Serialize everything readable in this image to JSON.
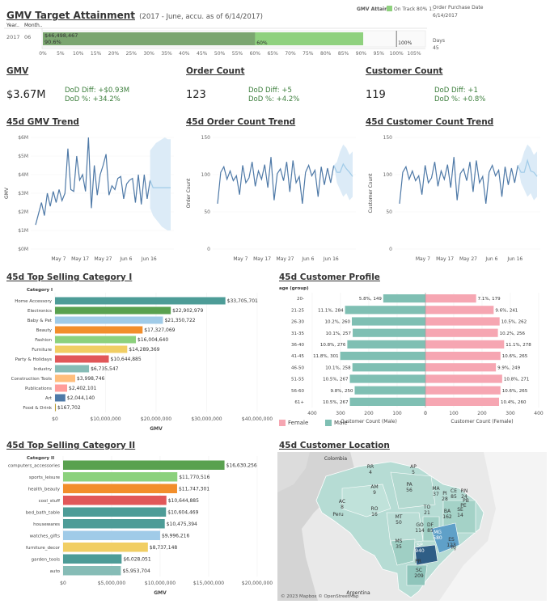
{
  "title": {
    "main": "GMV Target Attainment",
    "sub": "(2017 - June, accu. as of 6/14/2017)"
  },
  "legend_top": {
    "title": "GMV Attain..",
    "item": "On Track 80% 1..",
    "color": "#8fd17e"
  },
  "order_date": {
    "label": "Order Purchase Date",
    "value": "6/14/2017"
  },
  "days": {
    "label": "Days",
    "value": "45"
  },
  "attain": {
    "col_year": "Year..",
    "col_month": "Month..",
    "year": "2017",
    "month": "06",
    "value_label": "$46,498,467",
    "pct_label": "90.6%",
    "mark60": "60%",
    "mark100": "100%",
    "pct": 90.6,
    "ticks": [
      "0%",
      "5%",
      "10%",
      "15%",
      "20%",
      "25%",
      "30%",
      "35%",
      "40%",
      "45%",
      "50%",
      "55%",
      "60%",
      "65%",
      "70%",
      "75%",
      "80%",
      "85%",
      "90%",
      "95%",
      "100%",
      "105%"
    ]
  },
  "kpis": [
    {
      "title": "GMV",
      "value": "$3.67M",
      "diff": "DoD Diff: +$0.93M",
      "pct": "DoD %: +34.2%"
    },
    {
      "title": "Order Count",
      "value": "123",
      "diff": "DoD Diff: +5",
      "pct": "DoD %: +4.2%"
    },
    {
      "title": "Customer Count",
      "value": "119",
      "diff": "DoD Diff: +1",
      "pct": "DoD %: +0.8%"
    }
  ],
  "trends": {
    "titles": [
      "45d GMV Trend",
      "45d Order Count Trend",
      "45d Customer Count Trend"
    ],
    "ylabels": [
      "GMV",
      "Order Count",
      "Customer Count"
    ],
    "x_ticks": [
      "May 7",
      "May 17",
      "May 27",
      "Jun 6",
      "Jun 16"
    ]
  },
  "sections": {
    "cat1": "45d Top Selling Category I",
    "profile": "45d Customer Profile",
    "cat2": "45d Top Selling Category II",
    "location": "45d Customer Location"
  },
  "cat1_header": "Category I",
  "cat2_header": "Category II",
  "profile_header": "age (group)",
  "profile_xlabels": {
    "male": "Customer Count (Male)",
    "female": "Customer Count (Female)"
  },
  "profile_legend": {
    "female": "Female",
    "male": "Male"
  },
  "map": {
    "credit": "© 2023 Mapbox © OpenStreetMap",
    "labels": {
      "colombia": "Colombia",
      "peru": "Peru",
      "argentina": "Argentina",
      "rr": "RR\n4",
      "ap": "AP\n5",
      "am": "AM\n9",
      "pa": "PA\n56",
      "ma": "MA\n37",
      "ce": "CE\n85",
      "rn": "RN\n24",
      "pi": "PI\n28",
      "pb": "PB",
      "pe": "PE",
      "se": "SE\n14",
      "ac": "AC\n8",
      "ro": "RO\n16",
      "mt": "MT\n50",
      "to": "TO\n21",
      "ba": "BA\n162",
      "go": "GO\n114",
      "df": "DF\n85",
      "mg": "MG\n580",
      "es": "ES\n123",
      "ms": "MS\n35",
      "sp": "SP\n940",
      "rj": "RJ",
      "pr": "PR",
      "sc": "SC\n209"
    }
  },
  "colors": {
    "line": "#4e79a7",
    "forecast": "#a0cbe8",
    "band": "#dcebf7",
    "male": "#7fbfb3",
    "female": "#f6a6b2"
  },
  "chart_data": [
    {
      "type": "bar",
      "title": "GMV Target Attainment",
      "categories": [
        "2017 06"
      ],
      "values": [
        90.6
      ],
      "xlim": [
        0,
        105
      ],
      "xlabel": "",
      "annotations": [
        "$46,498,467",
        "90.6%"
      ]
    },
    {
      "type": "line",
      "title": "45d GMV Trend",
      "ylabel": "GMV",
      "ylim": [
        0,
        6000000
      ],
      "y_ticks": [
        "$0M",
        "$1M",
        "$2M",
        "$3M",
        "$4M",
        "$5M",
        "$6M"
      ],
      "x_ticks": [
        "May 7",
        "May 17",
        "May 27",
        "Jun 6",
        "Jun 16"
      ],
      "series": [
        {
          "values": [
            1300000,
            1900000,
            2500000,
            1800000,
            3000000,
            2300000,
            3100000,
            2500000,
            3200000,
            2600000,
            3000000,
            5400000,
            3200000,
            3100000,
            5000000,
            3700000,
            4000000,
            3100000,
            6000000,
            2200000,
            4500000,
            2900000,
            4000000,
            4500000,
            5100000,
            2900000,
            3400000,
            3200000,
            3800000,
            3900000,
            2700000,
            3500000,
            3700000,
            3800000,
            2500000,
            4000000,
            2400000,
            4000000,
            2700000,
            3700000
          ]
        },
        {
          "values": [
            3700000,
            3300000,
            3300000,
            3300000,
            3300000,
            3300000,
            3300000,
            3300000
          ]
        }
      ],
      "forecast_band": {
        "low": [
          2200000,
          1800000,
          1600000,
          1400000,
          1200000,
          1100000,
          1000000,
          1000000
        ],
        "high": [
          5300000,
          5500000,
          5700000,
          5800000,
          5900000,
          6000000,
          5900000,
          5900000
        ]
      }
    },
    {
      "type": "line",
      "title": "45d Order Count Trend",
      "ylabel": "Order Count",
      "ylim": [
        0,
        160
      ],
      "y_ticks": [
        "0",
        "50",
        "100",
        "150"
      ],
      "x_ticks": [
        "May 7",
        "May 17",
        "May 27",
        "Jun 6",
        "Jun 16"
      ],
      "series": [
        {
          "values": [
            65,
            110,
            118,
            100,
            112,
            98,
            105,
            78,
            120,
            95,
            102,
            125,
            90,
            112,
            100,
            121,
            88,
            132,
            70,
            108,
            115,
            98,
            125,
            82,
            127,
            95,
            104,
            65,
            110,
            120,
            105,
            113,
            75,
            118,
            92,
            116,
            95,
            120
          ]
        },
        {
          "values": [
            120,
            110,
            110,
            122,
            115,
            110,
            104
          ]
        }
      ],
      "forecast_band": {
        "low": [
          120,
          95,
          85,
          75,
          80,
          70,
          75
        ],
        "high": [
          120,
          125,
          140,
          150,
          145,
          135,
          140
        ]
      }
    },
    {
      "type": "line",
      "title": "45d Customer Count Trend",
      "ylabel": "Customer Count",
      "ylim": [
        0,
        160
      ],
      "y_ticks": [
        "0",
        "50",
        "100",
        "150"
      ],
      "x_ticks": [
        "May 7",
        "May 17",
        "May 27",
        "Jun 6",
        "Jun 16"
      ],
      "series": [
        {
          "values": [
            65,
            110,
            118,
            100,
            112,
            98,
            105,
            78,
            120,
            95,
            102,
            125,
            90,
            112,
            100,
            121,
            88,
            132,
            70,
            108,
            115,
            98,
            125,
            82,
            127,
            95,
            104,
            65,
            110,
            120,
            105,
            113,
            75,
            118,
            92,
            116,
            95,
            120
          ]
        },
        {
          "values": [
            119,
            110,
            110,
            127,
            112,
            110,
            104
          ]
        }
      ],
      "forecast_band": {
        "low": [
          119,
          95,
          85,
          75,
          80,
          70,
          75
        ],
        "high": [
          119,
          125,
          140,
          150,
          145,
          135,
          140
        ]
      }
    },
    {
      "type": "bar",
      "title": "45d Top Selling Category I",
      "xlabel": "GMV",
      "xlim": [
        0,
        40000000
      ],
      "x_ticks": [
        "$0",
        "$10,000,000",
        "$20,000,000",
        "$30,000,000",
        "$40,000,000"
      ],
      "categories": [
        "Home Accessory",
        "Electronics",
        "Baby & Pet",
        "Beauty",
        "Fashion",
        "Furniture",
        "Party & Holidays",
        "Industry",
        "Construction Tools",
        "Publications",
        "Art",
        "Food & Drink"
      ],
      "values": [
        33705701,
        22902979,
        21350722,
        17327069,
        16004640,
        14289369,
        10644885,
        6735547,
        3998746,
        2402101,
        2044140,
        167702
      ],
      "labels": [
        "$33,705,701",
        "$22,902,979",
        "$21,350,722",
        "$17,327,069",
        "$16,004,640",
        "$14,289,369",
        "$10,644,885",
        "$6,735,547",
        "$3,998,746",
        "$2,402,101",
        "$2,044,140",
        "$167,702"
      ],
      "colors": [
        "#4d9c97",
        "#59a14f",
        "#a0cbe8",
        "#f28e2b",
        "#8cd17d",
        "#f1ce63",
        "#e15759",
        "#86bcb6",
        "#ffbe7d",
        "#ff9d9a",
        "#4e79a7",
        "#b6992d"
      ]
    },
    {
      "type": "bar",
      "title": "45d Customer Profile",
      "categories": [
        "20-",
        "21-25",
        "26-30",
        "31-35",
        "36-40",
        "41-45",
        "46-50",
        "51-55",
        "56-60",
        "61+"
      ],
      "xlim_male": [
        0,
        400
      ],
      "xlim_female": [
        0,
        400
      ],
      "x_ticks_male": [
        "400",
        "300",
        "200",
        "100",
        "0"
      ],
      "x_ticks_female": [
        "0",
        "100",
        "200",
        "300",
        "400"
      ],
      "series": [
        {
          "name": "Male",
          "values": [
            149,
            284,
            260,
            257,
            276,
            301,
            258,
            267,
            250,
            267
          ],
          "labels": [
            "5.8%, 149",
            "11.1%, 284",
            "10.2%, 260",
            "10.1%, 257",
            "10.8%, 276",
            "11.8%, 301",
            "10.1%, 258",
            "10.5%, 267",
            "9.8%, 250",
            "10.5%, 267"
          ]
        },
        {
          "name": "Female",
          "values": [
            179,
            241,
            262,
            256,
            278,
            265,
            249,
            271,
            265,
            260
          ],
          "labels": [
            "7.1%, 179",
            "9.6%, 241",
            "10.5%, 262",
            "10.2%, 256",
            "11.1%, 278",
            "10.6%, 265",
            "9.9%, 249",
            "10.8%, 271",
            "10.6%, 265",
            "10.4%, 260"
          ]
        }
      ]
    },
    {
      "type": "bar",
      "title": "45d Top Selling Category II",
      "xlabel": "GMV",
      "xlim": [
        0,
        20000000
      ],
      "x_ticks": [
        "$0",
        "$5,000,000",
        "$10,000,000",
        "$15,000,000",
        "$20,000,000"
      ],
      "categories": [
        "computers_accessories",
        "sports_leisure",
        "health_beauty",
        "cool_stuff",
        "bed_bath_table",
        "housewares",
        "watches_gifts",
        "furniture_decor",
        "garden_tools",
        "auto"
      ],
      "values": [
        16630256,
        11770516,
        11747301,
        10644885,
        10604469,
        10475394,
        9996216,
        8737148,
        6028051,
        5953704
      ],
      "labels": [
        "$16,630,256",
        "$11,770,516",
        "$11,747,301",
        "$10,644,885",
        "$10,604,469",
        "$10,475,394",
        "$9,996,216",
        "$8,737,148",
        "$6,028,051",
        "$5,953,704"
      ],
      "colors": [
        "#59a14f",
        "#8cd17d",
        "#f28e2b",
        "#e15759",
        "#4d9c97",
        "#4d9c97",
        "#a0cbe8",
        "#f1ce63",
        "#4d9c97",
        "#86bcb6"
      ]
    }
  ]
}
